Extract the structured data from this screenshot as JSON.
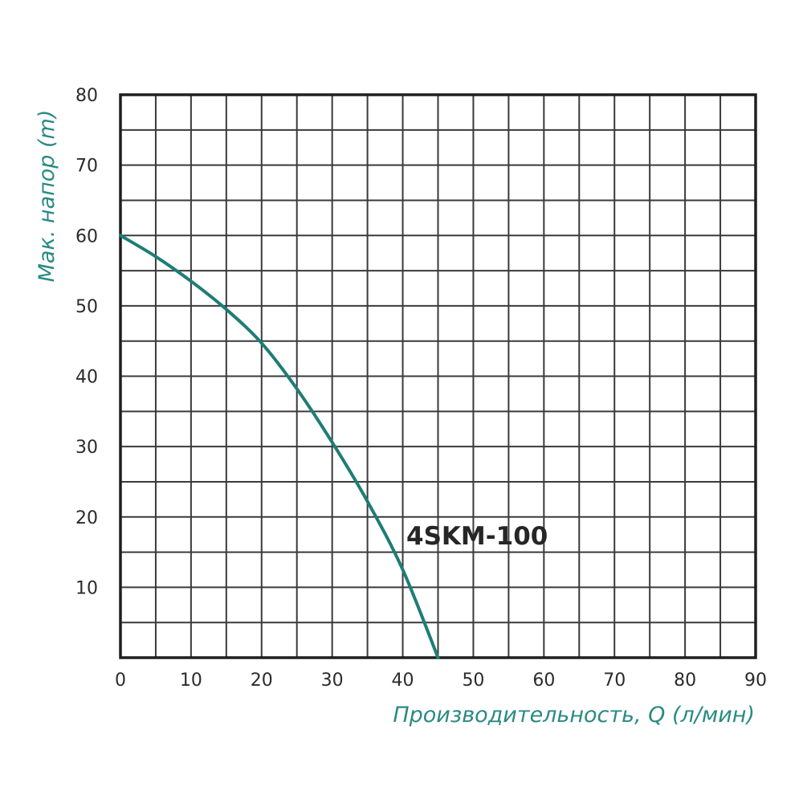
{
  "chart_data": {
    "type": "line",
    "title": "",
    "xlabel": "Производительность, Q (л/мин)",
    "ylabel": "Мак. напор (m)",
    "xlim": [
      0,
      90
    ],
    "ylim": [
      0,
      80
    ],
    "x_ticks": [
      0,
      10,
      20,
      30,
      40,
      50,
      60,
      70,
      80,
      90
    ],
    "y_ticks": [
      10,
      20,
      30,
      40,
      50,
      60,
      70,
      80
    ],
    "grid": true,
    "grid_step_x": 5,
    "grid_step_y": 5,
    "legend_position": "inline-label",
    "series": [
      {
        "name": "4SKM-100",
        "color": "#1e7d76",
        "x": [
          0,
          5,
          10,
          15,
          20,
          25,
          30,
          35,
          40,
          45
        ],
        "values": [
          60,
          57,
          53.5,
          49.5,
          44.7,
          38.2,
          30.6,
          22.2,
          12.5,
          0
        ]
      }
    ]
  },
  "labels": {
    "x_axis_title": "Производительность, Q (л/мин)",
    "y_axis_title": "Мак. напор (m)",
    "series_label": "4SKM-100"
  },
  "colors": {
    "curve": "#1e7d76",
    "axis_title": "#2a8a83",
    "grid": "#3a3a3a",
    "frame": "#1f1f1f",
    "tick_text": "#2b2b2b"
  }
}
